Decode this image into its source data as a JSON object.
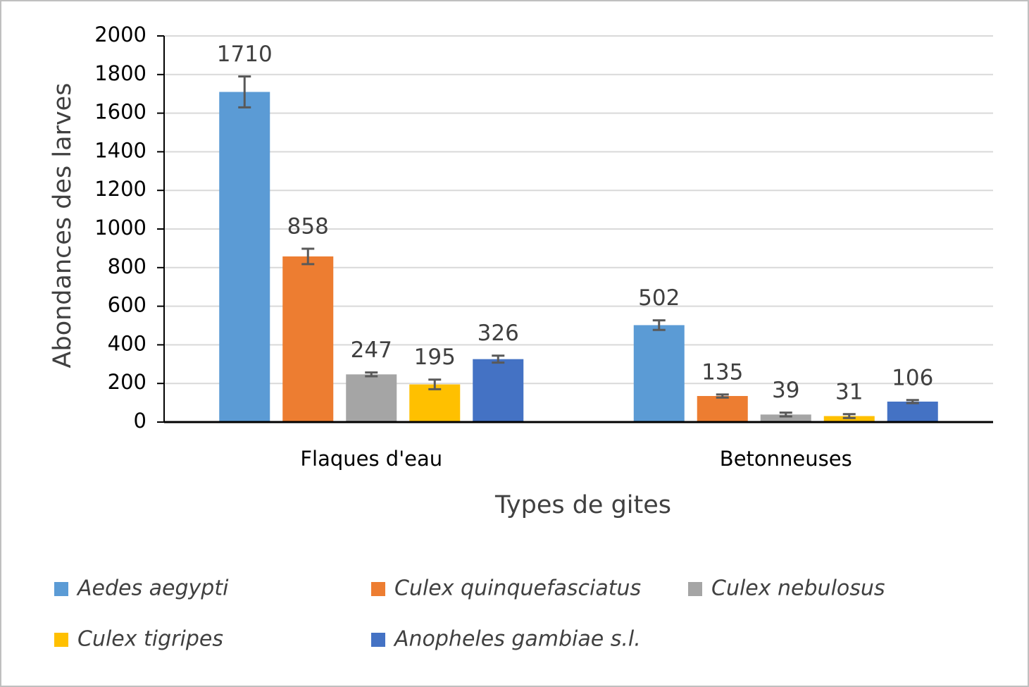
{
  "chart_data": {
    "type": "bar",
    "x_label": "Types de gites",
    "y_label": "Abondances des larves",
    "categories": [
      "Flaques d'eau",
      "Betonneuses"
    ],
    "series": [
      {
        "name": "Aedes aegypti",
        "color": "#5b9bd5",
        "values": [
          1710,
          502
        ],
        "errors": [
          80,
          25
        ]
      },
      {
        "name": "Culex quinquefasciatus",
        "color": "#ed7d31",
        "values": [
          858,
          135
        ],
        "errors": [
          40,
          8
        ]
      },
      {
        "name": "Culex nebulosus",
        "color": "#a5a5a5",
        "values": [
          247,
          39
        ],
        "errors": [
          10,
          10
        ]
      },
      {
        "name": "Culex tigripes",
        "color": "#ffc000",
        "values": [
          195,
          31
        ],
        "errors": [
          25,
          10
        ]
      },
      {
        "name": "Anopheles gambiae s.l.",
        "color": "#4472c4",
        "values": [
          326,
          106
        ],
        "errors": [
          18,
          8
        ]
      }
    ],
    "ylim": [
      0,
      2000
    ],
    "yticks": [
      0,
      200,
      400,
      600,
      800,
      1000,
      1200,
      1400,
      1600,
      1800,
      2000
    ],
    "grid": true
  }
}
